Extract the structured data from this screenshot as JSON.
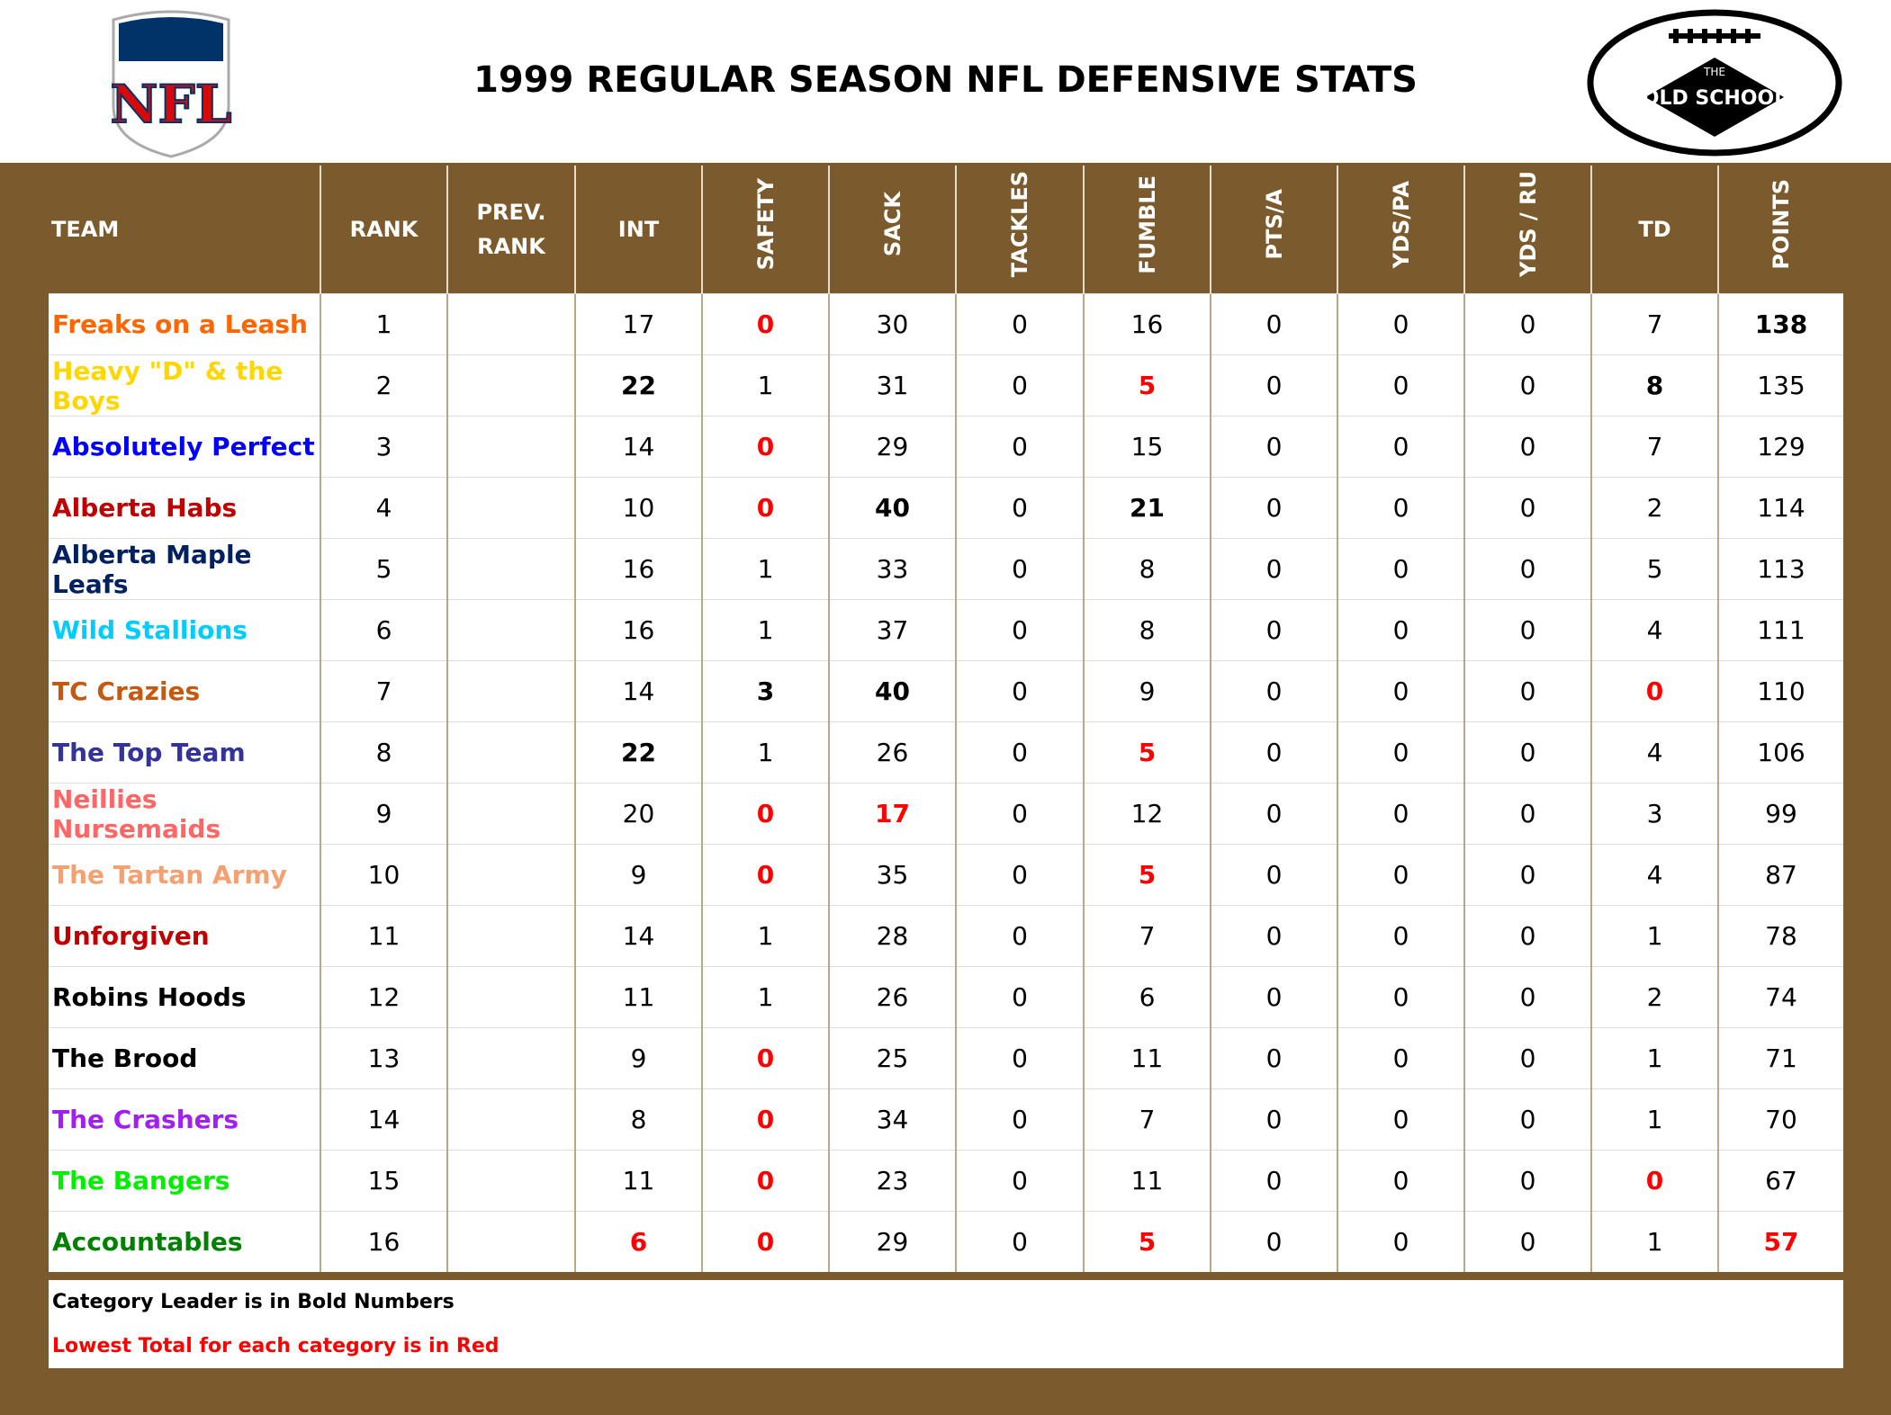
{
  "header": {
    "title": "1999 REGULAR SEASON NFL DEFENSIVE STATS",
    "left_logo": "NFL",
    "right_logo": {
      "top": "THE",
      "main": "OLD SCHOOL"
    }
  },
  "table": {
    "columns": [
      {
        "label": "TEAM",
        "rotated": false
      },
      {
        "label": "RANK",
        "rotated": false
      },
      {
        "label": "PREV. RANK",
        "rotated": false
      },
      {
        "label": "INT",
        "rotated": false
      },
      {
        "label": "SAFETY",
        "rotated": true
      },
      {
        "label": "SACK",
        "rotated": true
      },
      {
        "label": "TACKLES",
        "rotated": true
      },
      {
        "label": "FUMBLE",
        "rotated": true
      },
      {
        "label": "PTS/A",
        "rotated": true
      },
      {
        "label": "YDS/PA",
        "rotated": true
      },
      {
        "label": "YDS / RU",
        "rotated": true
      },
      {
        "label": "TD",
        "rotated": false
      },
      {
        "label": "POINTS",
        "rotated": true
      }
    ],
    "rows": [
      {
        "team": "Freaks on a Leash",
        "color": "#FF6600",
        "cells": [
          1,
          null,
          17,
          0,
          30,
          0,
          16,
          0,
          0,
          0,
          7,
          138
        ],
        "bold": [
          11
        ],
        "red": [
          3
        ]
      },
      {
        "team": "Heavy \"D\" & the Boys",
        "color": "#FFD700",
        "cells": [
          2,
          null,
          22,
          1,
          31,
          0,
          5,
          0,
          0,
          0,
          8,
          135
        ],
        "bold": [
          2,
          10
        ],
        "red": [
          6
        ]
      },
      {
        "team": "Absolutely Perfect",
        "color": "#0000FF",
        "cells": [
          3,
          null,
          14,
          0,
          29,
          0,
          15,
          0,
          0,
          0,
          7,
          129
        ],
        "bold": [],
        "red": [
          3
        ]
      },
      {
        "team": "Alberta Habs",
        "color": "#C00000",
        "cells": [
          4,
          null,
          10,
          0,
          40,
          0,
          21,
          0,
          0,
          0,
          2,
          114
        ],
        "bold": [
          4,
          6
        ],
        "red": [
          3
        ]
      },
      {
        "team": "Alberta Maple Leafs",
        "color": "#002060",
        "cells": [
          5,
          null,
          16,
          1,
          33,
          0,
          8,
          0,
          0,
          0,
          5,
          113
        ],
        "bold": [],
        "red": []
      },
      {
        "team": "Wild Stallions",
        "color": "#00CCFF",
        "cells": [
          6,
          null,
          16,
          1,
          37,
          0,
          8,
          0,
          0,
          0,
          4,
          111
        ],
        "bold": [],
        "red": []
      },
      {
        "team": "TC Crazies",
        "color": "#C65911",
        "cells": [
          7,
          null,
          14,
          3,
          40,
          0,
          9,
          0,
          0,
          0,
          0,
          110
        ],
        "bold": [
          3,
          4
        ],
        "red": [
          10
        ]
      },
      {
        "team": "The Top Team",
        "color": "#333399",
        "cells": [
          8,
          null,
          22,
          1,
          26,
          0,
          5,
          0,
          0,
          0,
          4,
          106
        ],
        "bold": [
          2
        ],
        "red": [
          6
        ]
      },
      {
        "team": "Neillies Nursemaids",
        "color": "#FF6666",
        "cells": [
          9,
          null,
          20,
          0,
          17,
          0,
          12,
          0,
          0,
          0,
          3,
          99
        ],
        "bold": [],
        "red": [
          3,
          4
        ]
      },
      {
        "team": "The Tartan Army",
        "color": "#F4A070",
        "cells": [
          10,
          null,
          9,
          0,
          35,
          0,
          5,
          0,
          0,
          0,
          4,
          87
        ],
        "bold": [],
        "red": [
          3,
          6
        ]
      },
      {
        "team": "Unforgiven",
        "color": "#C00000",
        "cells": [
          11,
          null,
          14,
          1,
          28,
          0,
          7,
          0,
          0,
          0,
          1,
          78
        ],
        "bold": [],
        "red": []
      },
      {
        "team": "Robins Hoods",
        "color": "#000000",
        "cells": [
          12,
          null,
          11,
          1,
          26,
          0,
          6,
          0,
          0,
          0,
          2,
          74
        ],
        "bold": [],
        "red": []
      },
      {
        "team": "The Brood",
        "color": "#000000",
        "cells": [
          13,
          null,
          9,
          0,
          25,
          0,
          11,
          0,
          0,
          0,
          1,
          71
        ],
        "bold": [],
        "red": [
          3
        ]
      },
      {
        "team": "The Crashers",
        "color": "#A020F0",
        "cells": [
          14,
          null,
          8,
          0,
          34,
          0,
          7,
          0,
          0,
          0,
          1,
          70
        ],
        "bold": [],
        "red": [
          3
        ]
      },
      {
        "team": "The Bangers",
        "color": "#00EE00",
        "cells": [
          15,
          null,
          11,
          0,
          23,
          0,
          11,
          0,
          0,
          0,
          0,
          67
        ],
        "bold": [],
        "red": [
          3,
          10
        ]
      },
      {
        "team": "Accountables",
        "color": "#008000",
        "cells": [
          16,
          null,
          6,
          0,
          29,
          0,
          5,
          0,
          0,
          0,
          1,
          57
        ],
        "bold": [],
        "red": [
          2,
          3,
          6,
          11
        ]
      }
    ]
  },
  "footer": {
    "note_bold": "Category Leader is in Bold Numbers",
    "note_red": "Lowest Total for each category is in Red"
  }
}
